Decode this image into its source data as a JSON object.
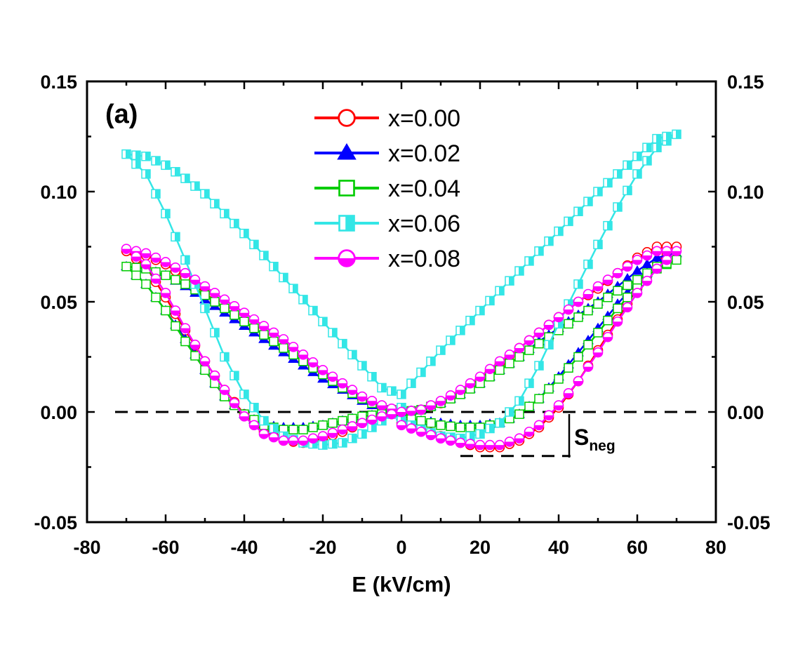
{
  "chart_data": {
    "type": "line",
    "panel_label": "(a)",
    "xlabel": "E (kV/cm)",
    "ylabel": "",
    "xlim": [
      -80,
      80
    ],
    "ylim": [
      -0.05,
      0.15
    ],
    "x_ticks": [
      "-80",
      "-60",
      "-40",
      "-20",
      "0",
      "20",
      "40",
      "60",
      "80"
    ],
    "y_ticks": [
      "-0.05",
      "0.00",
      "0.05",
      "0.10",
      "0.15"
    ],
    "right_y_ticks": [
      "-0.05",
      "0.00",
      "0.05",
      "0.10",
      "0.15"
    ],
    "legend_position": "top-center",
    "grid": false,
    "reference_line_y": 0.0,
    "annotation": {
      "text": "S",
      "subscript": "neg",
      "y_level": -0.02,
      "x_from": 15,
      "x_to": 43
    },
    "series": [
      {
        "name": "x=0.00",
        "color": "#ff0000",
        "marker": "open-circle",
        "x": [
          0,
          5,
          10,
          15,
          20,
          25,
          30,
          35,
          40,
          45,
          50,
          55,
          60,
          65,
          70,
          65,
          60,
          55,
          50,
          45,
          40,
          35,
          30,
          25,
          20,
          15,
          10,
          5,
          0,
          -5,
          -10,
          -15,
          -20,
          -25,
          -30,
          -35,
          -40,
          -45,
          -50,
          -55,
          -60,
          -65,
          -70,
          -65,
          -60,
          -55,
          -50,
          -45,
          -40,
          -35,
          -30,
          -25,
          -20,
          -15,
          -10,
          -5,
          0
        ],
        "y": [
          -0.005,
          -0.008,
          -0.011,
          -0.014,
          -0.016,
          -0.016,
          -0.013,
          -0.007,
          0.002,
          0.014,
          0.028,
          0.042,
          0.056,
          0.068,
          0.075,
          0.075,
          0.07,
          0.063,
          0.056,
          0.05,
          0.043,
          0.036,
          0.029,
          0.022,
          0.015,
          0.009,
          0.004,
          0.001,
          0.0,
          0.002,
          0.006,
          0.011,
          0.017,
          0.023,
          0.029,
          0.035,
          0.041,
          0.047,
          0.054,
          0.061,
          0.067,
          0.071,
          0.073,
          0.066,
          0.052,
          0.037,
          0.023,
          0.01,
          -0.001,
          -0.009,
          -0.013,
          -0.014,
          -0.012,
          -0.009,
          -0.005,
          -0.002,
          0.0
        ]
      },
      {
        "name": "x=0.02",
        "color": "#0000ff",
        "marker": "filled-triangle",
        "x": [
          0,
          5,
          10,
          15,
          20,
          25,
          30,
          35,
          40,
          45,
          50,
          55,
          60,
          65,
          70,
          65,
          60,
          55,
          50,
          45,
          40,
          35,
          30,
          25,
          20,
          15,
          10,
          5,
          0,
          -5,
          -10,
          -15,
          -20,
          -25,
          -30,
          -35,
          -40,
          -45,
          -50,
          -55,
          -60,
          -65,
          -70,
          -65,
          -60,
          -55,
          -50,
          -45,
          -40,
          -35,
          -30,
          -25,
          -20,
          -15,
          -10,
          -5,
          0
        ],
        "y": [
          -0.002,
          -0.004,
          -0.005,
          -0.006,
          -0.006,
          -0.005,
          -0.001,
          0.006,
          0.016,
          0.027,
          0.038,
          0.049,
          0.059,
          0.067,
          0.072,
          0.07,
          0.064,
          0.057,
          0.05,
          0.044,
          0.038,
          0.032,
          0.025,
          0.019,
          0.013,
          0.008,
          0.004,
          0.001,
          0.0,
          0.001,
          0.005,
          0.01,
          0.015,
          0.021,
          0.027,
          0.033,
          0.039,
          0.045,
          0.051,
          0.057,
          0.062,
          0.065,
          0.066,
          0.058,
          0.046,
          0.033,
          0.019,
          0.007,
          -0.001,
          -0.006,
          -0.007,
          -0.007,
          -0.006,
          -0.004,
          -0.002,
          -0.001,
          0.0
        ]
      },
      {
        "name": "x=0.04",
        "color": "#00cc00",
        "marker": "open-square",
        "x": [
          0,
          5,
          10,
          15,
          20,
          25,
          30,
          35,
          40,
          45,
          50,
          55,
          60,
          65,
          70,
          65,
          60,
          55,
          50,
          45,
          40,
          35,
          30,
          25,
          20,
          15,
          10,
          5,
          0,
          -5,
          -10,
          -15,
          -20,
          -25,
          -30,
          -35,
          -40,
          -45,
          -50,
          -55,
          -60,
          -65,
          -70,
          -65,
          -60,
          -55,
          -50,
          -45,
          -40,
          -35,
          -30,
          -25,
          -20,
          -15,
          -10,
          -5,
          0
        ],
        "y": [
          -0.002,
          -0.004,
          -0.006,
          -0.007,
          -0.007,
          -0.005,
          -0.001,
          0.006,
          0.015,
          0.025,
          0.036,
          0.047,
          0.057,
          0.065,
          0.069,
          0.066,
          0.06,
          0.055,
          0.049,
          0.043,
          0.037,
          0.031,
          0.025,
          0.019,
          0.013,
          0.008,
          0.004,
          0.001,
          0.0,
          0.002,
          0.006,
          0.011,
          0.017,
          0.023,
          0.029,
          0.035,
          0.041,
          0.047,
          0.053,
          0.058,
          0.062,
          0.065,
          0.066,
          0.058,
          0.046,
          0.032,
          0.019,
          0.007,
          -0.001,
          -0.006,
          -0.008,
          -0.008,
          -0.006,
          -0.004,
          -0.002,
          -0.001,
          0.0
        ]
      },
      {
        "name": "x=0.06",
        "color": "#33e6e6",
        "marker": "half-filled-square",
        "x": [
          0,
          5,
          10,
          15,
          20,
          25,
          30,
          35,
          40,
          45,
          50,
          55,
          60,
          65,
          70,
          65,
          60,
          55,
          50,
          45,
          40,
          35,
          30,
          25,
          20,
          15,
          10,
          5,
          0,
          -5,
          -10,
          -15,
          -20,
          -25,
          -30,
          -35,
          -40,
          -45,
          -50,
          -55,
          -60,
          -65,
          -70,
          -65,
          -60,
          -55,
          -50,
          -45,
          -40,
          -35,
          -30,
          -25,
          -20,
          -15,
          -10,
          -5,
          0
        ],
        "y": [
          -0.004,
          -0.008,
          -0.011,
          -0.012,
          -0.01,
          -0.005,
          0.005,
          0.021,
          0.04,
          0.058,
          0.076,
          0.093,
          0.108,
          0.12,
          0.126,
          0.124,
          0.116,
          0.108,
          0.1,
          0.091,
          0.082,
          0.073,
          0.064,
          0.055,
          0.046,
          0.037,
          0.028,
          0.018,
          0.008,
          0.011,
          0.021,
          0.031,
          0.041,
          0.051,
          0.061,
          0.071,
          0.081,
          0.09,
          0.099,
          0.106,
          0.112,
          0.116,
          0.117,
          0.108,
          0.09,
          0.069,
          0.047,
          0.025,
          0.008,
          -0.004,
          -0.011,
          -0.014,
          -0.015,
          -0.014,
          -0.01,
          -0.004,
          0.002
        ]
      },
      {
        "name": "x=0.08",
        "color": "#ff00ff",
        "marker": "half-filled-circle",
        "x": [
          0,
          5,
          10,
          15,
          20,
          25,
          30,
          35,
          40,
          45,
          50,
          55,
          60,
          65,
          70,
          65,
          60,
          55,
          50,
          45,
          40,
          35,
          30,
          25,
          20,
          15,
          10,
          5,
          0,
          -5,
          -10,
          -15,
          -20,
          -25,
          -30,
          -35,
          -40,
          -45,
          -50,
          -55,
          -60,
          -65,
          -70,
          -65,
          -60,
          -55,
          -50,
          -45,
          -40,
          -35,
          -30,
          -25,
          -20,
          -15,
          -10,
          -5,
          0
        ],
        "y": [
          -0.006,
          -0.009,
          -0.012,
          -0.014,
          -0.015,
          -0.015,
          -0.012,
          -0.006,
          0.003,
          0.014,
          0.027,
          0.041,
          0.054,
          0.065,
          0.073,
          0.073,
          0.069,
          0.063,
          0.057,
          0.05,
          0.043,
          0.036,
          0.029,
          0.023,
          0.016,
          0.01,
          0.005,
          0.001,
          0.0,
          0.003,
          0.007,
          0.013,
          0.019,
          0.026,
          0.033,
          0.039,
          0.045,
          0.051,
          0.057,
          0.063,
          0.068,
          0.072,
          0.074,
          0.067,
          0.054,
          0.038,
          0.023,
          0.01,
          -0.002,
          -0.01,
          -0.013,
          -0.013,
          -0.011,
          -0.008,
          -0.005,
          -0.002,
          0.0
        ]
      }
    ]
  }
}
